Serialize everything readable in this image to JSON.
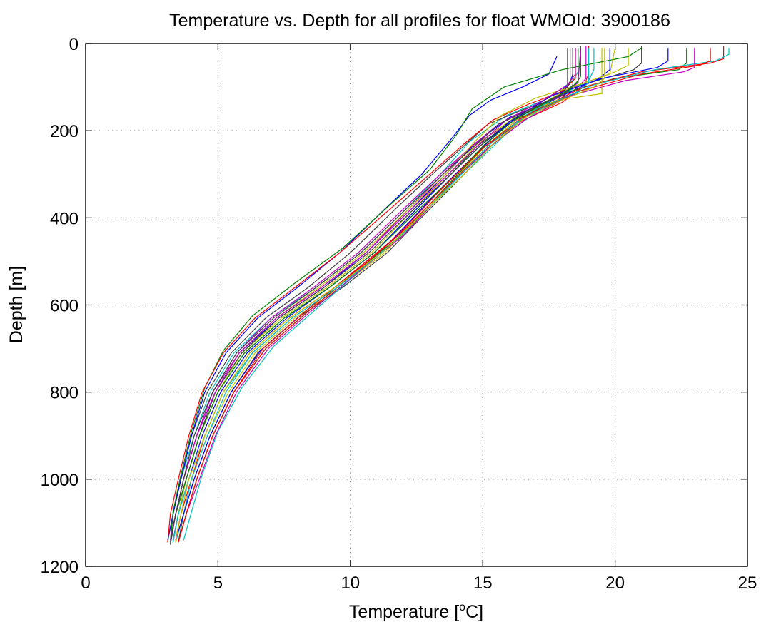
{
  "chart_data": {
    "type": "line",
    "title": "Temperature vs. Depth for all profiles for float WMOId: 3900186",
    "xlabel": "Temperature [",
    "xlabel_sup": "o",
    "xlabel_end": "C]",
    "ylabel": "Depth [m]",
    "xlim": [
      0,
      25
    ],
    "ylim": [
      0,
      1200
    ],
    "y_reversed": true,
    "grid": true,
    "xticks": [
      0,
      5,
      10,
      15,
      20,
      25
    ],
    "yticks": [
      0,
      200,
      400,
      600,
      800,
      1000,
      1200
    ],
    "xtick_labels": [
      "0",
      "5",
      "10",
      "15",
      "20",
      "25"
    ],
    "ytick_labels": [
      "0",
      "200",
      "400",
      "600",
      "800",
      "1000",
      "1200"
    ],
    "colors": [
      "#0000ff",
      "#008000",
      "#ff0000",
      "#00bfbf",
      "#bf00bf",
      "#bfbf00",
      "#404040"
    ],
    "series": [
      {
        "x": [
          18.4,
          18.4,
          18.3,
          17.6,
          16.0,
          14.7,
          13.6,
          12.3,
          10.6,
          9.0,
          7.3,
          5.8,
          4.9,
          4.2,
          3.7,
          3.4,
          3.2
        ],
        "y": [
          10,
          70,
          90,
          130,
          170,
          230,
          300,
          380,
          480,
          560,
          630,
          710,
          800,
          900,
          1000,
          1080,
          1140
        ]
      },
      {
        "x": [
          18.7,
          18.7,
          18.5,
          17.8,
          16.2,
          14.8,
          13.8,
          12.5,
          10.9,
          9.2,
          7.5,
          6.0,
          5.0,
          4.3,
          3.8,
          3.5,
          3.3
        ],
        "y": [
          5,
          75,
          95,
          135,
          175,
          235,
          300,
          380,
          480,
          560,
          630,
          710,
          800,
          900,
          1000,
          1080,
          1145
        ]
      },
      {
        "x": [
          19.0,
          19.0,
          18.8,
          18.0,
          16.4,
          15.0,
          14.0,
          12.7,
          11.1,
          9.4,
          7.7,
          6.2,
          5.2,
          4.5,
          4.0,
          3.6,
          3.4
        ],
        "y": [
          5,
          70,
          100,
          135,
          180,
          240,
          300,
          380,
          480,
          560,
          630,
          710,
          800,
          900,
          1000,
          1080,
          1140
        ]
      },
      {
        "x": [
          18.6,
          18.6,
          18.4,
          17.5,
          15.9,
          14.5,
          13.4,
          12.1,
          10.4,
          8.7,
          7.0,
          5.6,
          4.7,
          4.1,
          3.6,
          3.3,
          3.1
        ],
        "y": [
          10,
          65,
          85,
          125,
          165,
          225,
          300,
          380,
          480,
          560,
          630,
          710,
          800,
          900,
          1000,
          1080,
          1145
        ]
      },
      {
        "x": [
          18.9,
          18.9,
          18.6,
          17.7,
          16.1,
          14.6,
          13.5,
          12.2,
          10.6,
          8.9,
          7.2,
          5.8,
          4.8,
          4.2,
          3.7,
          3.4,
          3.2
        ],
        "y": [
          5,
          80,
          100,
          140,
          180,
          235,
          300,
          380,
          480,
          560,
          630,
          710,
          800,
          900,
          1000,
          1080,
          1150
        ]
      },
      {
        "x": [
          20.5,
          20.5,
          20.0,
          18.2,
          16.6,
          15.2,
          14.1,
          12.9,
          11.3,
          9.6,
          7.9,
          6.4,
          5.4,
          4.6,
          4.0,
          3.7,
          3.5
        ],
        "y": [
          10,
          50,
          65,
          105,
          160,
          230,
          300,
          380,
          480,
          560,
          630,
          710,
          800,
          900,
          1000,
          1080,
          1145
        ]
      },
      {
        "x": [
          21.0,
          21.0,
          20.7,
          18.5,
          16.8,
          15.4,
          14.3,
          13.0,
          11.4,
          9.7,
          8.0,
          6.5,
          5.5,
          4.7,
          4.1,
          3.7,
          3.5
        ],
        "y": [
          5,
          45,
          60,
          100,
          160,
          230,
          300,
          380,
          480,
          560,
          630,
          710,
          800,
          900,
          1000,
          1080,
          1145
        ]
      },
      {
        "x": [
          19.8,
          19.8,
          19.4,
          18.0,
          16.3,
          14.9,
          13.8,
          12.5,
          10.9,
          9.2,
          7.6,
          6.1,
          5.1,
          4.4,
          3.9,
          3.5,
          3.3
        ],
        "y": [
          10,
          60,
          80,
          120,
          170,
          235,
          300,
          380,
          480,
          560,
          630,
          710,
          800,
          900,
          1000,
          1080,
          1140
        ]
      },
      {
        "x": [
          22.7,
          22.7,
          22.4,
          20.0,
          18.0,
          16.4,
          15.0,
          13.6,
          11.9,
          10.1,
          8.3,
          6.8,
          5.6,
          4.8,
          4.2,
          3.8,
          3.5
        ],
        "y": [
          10,
          45,
          60,
          80,
          115,
          175,
          240,
          330,
          440,
          530,
          620,
          700,
          800,
          900,
          1000,
          1080,
          1145
        ]
      },
      {
        "x": [
          24.1,
          24.1,
          23.6,
          21.0,
          18.8,
          16.8,
          15.3,
          13.8,
          12.0,
          10.2,
          8.4,
          6.8,
          5.6,
          4.8,
          4.2,
          3.8,
          3.5
        ],
        "y": [
          5,
          35,
          45,
          65,
          100,
          160,
          230,
          320,
          430,
          525,
          615,
          700,
          800,
          900,
          1000,
          1080,
          1145
        ]
      },
      {
        "x": [
          24.3,
          24.3,
          23.8,
          21.5,
          19.2,
          17.2,
          15.6,
          14.0,
          12.3,
          10.5,
          8.7,
          7.1,
          5.9,
          5.0,
          4.4,
          4.0,
          3.7
        ],
        "y": [
          10,
          25,
          40,
          60,
          95,
          150,
          220,
          310,
          420,
          515,
          610,
          695,
          790,
          890,
          990,
          1075,
          1140
        ]
      },
      {
        "x": [
          23.0,
          23.0,
          22.6,
          20.4,
          18.3,
          16.6,
          15.2,
          13.7,
          12.0,
          10.2,
          8.4,
          6.9,
          5.7,
          4.9,
          4.3,
          3.8,
          3.5
        ],
        "y": [
          10,
          55,
          65,
          85,
          120,
          175,
          240,
          330,
          440,
          530,
          620,
          700,
          800,
          900,
          1000,
          1080,
          1145
        ]
      },
      {
        "x": [
          19.5,
          19.5,
          19.5,
          17.8,
          16.2,
          14.8,
          13.7,
          12.4,
          10.8,
          9.1,
          7.4,
          5.9,
          5.0,
          4.3,
          3.8,
          3.4,
          3.2
        ],
        "y": [
          10,
          110,
          115,
          130,
          170,
          230,
          300,
          380,
          480,
          560,
          630,
          710,
          800,
          900,
          1000,
          1080,
          1145
        ]
      },
      {
        "x": [
          18.2,
          18.2,
          17.8,
          16.6,
          15.2,
          14.2,
          13.1,
          11.7,
          10.0,
          8.4,
          6.8,
          5.5,
          4.6,
          4.0,
          3.6,
          3.3,
          3.2
        ],
        "y": [
          10,
          100,
          125,
          150,
          185,
          240,
          300,
          380,
          480,
          560,
          630,
          710,
          800,
          900,
          1000,
          1080,
          1150
        ]
      },
      {
        "x": [
          17.8,
          17.5,
          16.5,
          15.3,
          14.5,
          13.8,
          12.7,
          11.3,
          9.6,
          8.0,
          6.5,
          5.3,
          4.5,
          4.0,
          3.6,
          3.3,
          3.1
        ],
        "y": [
          30,
          70,
          100,
          130,
          165,
          220,
          300,
          380,
          480,
          560,
          630,
          710,
          800,
          900,
          1000,
          1080,
          1140
        ]
      },
      {
        "x": [
          21.0,
          20.5,
          18.0,
          15.8,
          14.6,
          14.0,
          13.0,
          11.5,
          9.7,
          7.9,
          6.3,
          5.2,
          4.5,
          4.0,
          3.6,
          3.3,
          3.2
        ],
        "y": [
          10,
          30,
          60,
          100,
          150,
          210,
          290,
          370,
          470,
          550,
          625,
          705,
          790,
          890,
          990,
          1075,
          1140
        ]
      },
      {
        "x": [
          18.5,
          18.5,
          18.0,
          16.7,
          15.4,
          14.3,
          13.0,
          11.5,
          9.6,
          7.9,
          6.4,
          5.2,
          4.4,
          3.9,
          3.5,
          3.2,
          3.1
        ],
        "y": [
          10,
          80,
          110,
          140,
          175,
          230,
          300,
          380,
          480,
          560,
          630,
          710,
          800,
          900,
          1000,
          1080,
          1145
        ]
      },
      {
        "x": [
          19.2,
          19.2,
          19.0,
          17.9,
          16.6,
          15.5,
          14.3,
          12.9,
          11.2,
          9.5,
          7.8,
          6.3,
          5.3,
          4.6,
          4.0,
          3.7,
          3.4
        ],
        "y": [
          10,
          60,
          85,
          120,
          165,
          230,
          300,
          380,
          480,
          560,
          630,
          710,
          800,
          900,
          1000,
          1080,
          1145
        ]
      },
      {
        "x": [
          18.7,
          18.6,
          18.0,
          16.8,
          15.6,
          14.6,
          13.4,
          12.0,
          10.3,
          8.6,
          7.0,
          5.7,
          4.8,
          4.2,
          3.7,
          3.4,
          3.2
        ],
        "y": [
          10,
          90,
          120,
          150,
          185,
          235,
          300,
          380,
          480,
          560,
          630,
          710,
          800,
          900,
          1000,
          1080,
          1140
        ]
      },
      {
        "x": [
          20.0,
          19.8,
          18.6,
          17.0,
          15.7,
          14.7,
          13.6,
          12.2,
          10.5,
          8.8,
          7.2,
          5.8,
          4.9,
          4.3,
          3.8,
          3.5,
          3.3
        ],
        "y": [
          10,
          70,
          95,
          125,
          165,
          225,
          300,
          380,
          480,
          560,
          630,
          710,
          800,
          900,
          1000,
          1080,
          1145
        ]
      },
      {
        "x": [
          18.4,
          18.4,
          18.1,
          17.2,
          16.0,
          14.9,
          13.8,
          12.4,
          10.7,
          9.0,
          7.3,
          5.9,
          4.9,
          4.3,
          3.8,
          3.4,
          3.2
        ],
        "y": [
          10,
          95,
          115,
          140,
          180,
          235,
          300,
          380,
          480,
          560,
          630,
          710,
          800,
          900,
          1000,
          1080,
          1150
        ]
      },
      {
        "x": [
          22.0,
          22.0,
          21.6,
          19.5,
          17.6,
          16.0,
          14.8,
          13.3,
          11.6,
          9.8,
          8.1,
          6.6,
          5.5,
          4.7,
          4.1,
          3.7,
          3.4
        ],
        "y": [
          10,
          40,
          55,
          80,
          120,
          180,
          250,
          340,
          450,
          540,
          625,
          705,
          800,
          900,
          1000,
          1080,
          1140
        ]
      },
      {
        "x": [
          18.6,
          18.6,
          18.3,
          17.4,
          16.2,
          15.1,
          14.0,
          12.6,
          10.9,
          9.2,
          7.5,
          6.0,
          5.0,
          4.3,
          3.8,
          3.4,
          3.2
        ],
        "y": [
          10,
          85,
          105,
          135,
          175,
          230,
          300,
          380,
          480,
          560,
          630,
          710,
          800,
          900,
          1000,
          1080,
          1145
        ]
      },
      {
        "x": [
          23.6,
          23.6,
          23.2,
          21.0,
          18.6,
          16.5,
          15.0,
          13.5,
          11.8,
          10.0,
          8.2,
          6.7,
          5.6,
          4.8,
          4.2,
          3.8,
          3.5
        ],
        "y": [
          10,
          40,
          50,
          70,
          110,
          170,
          240,
          330,
          440,
          530,
          620,
          700,
          800,
          900,
          1000,
          1080,
          1145
        ]
      },
      {
        "x": [
          19.0,
          19.0,
          18.6,
          17.5,
          16.3,
          15.2,
          14.2,
          12.9,
          11.2,
          9.5,
          7.8,
          6.3,
          5.2,
          4.5,
          3.9,
          3.5,
          3.3
        ],
        "y": [
          10,
          90,
          110,
          140,
          180,
          235,
          300,
          380,
          480,
          560,
          630,
          710,
          800,
          900,
          1000,
          1080,
          1145
        ]
      },
      {
        "x": [
          18.5,
          18.5,
          18.2,
          17.3,
          15.9,
          14.8,
          13.7,
          12.3,
          10.6,
          8.9,
          7.2,
          5.8,
          4.9,
          4.2,
          3.7,
          3.4,
          3.2
        ],
        "y": [
          10,
          70,
          95,
          130,
          175,
          235,
          300,
          380,
          480,
          560,
          630,
          710,
          800,
          900,
          1000,
          1080,
          1140
        ]
      },
      {
        "x": [
          19.6,
          19.6,
          19.2,
          18.0,
          16.6,
          15.4,
          14.3,
          12.9,
          11.2,
          9.4,
          7.7,
          6.2,
          5.2,
          4.5,
          3.9,
          3.6,
          3.4
        ],
        "y": [
          10,
          80,
          100,
          130,
          170,
          230,
          300,
          380,
          480,
          560,
          630,
          710,
          800,
          900,
          1000,
          1080,
          1145
        ]
      },
      {
        "x": [
          18.3,
          18.3,
          18.0,
          17.0,
          15.6,
          14.6,
          13.5,
          12.1,
          10.4,
          8.7,
          7.1,
          5.7,
          4.8,
          4.1,
          3.7,
          3.4,
          3.2
        ],
        "y": [
          10,
          90,
          115,
          145,
          185,
          240,
          300,
          380,
          480,
          560,
          630,
          710,
          800,
          900,
          1000,
          1080,
          1145
        ]
      }
    ]
  }
}
